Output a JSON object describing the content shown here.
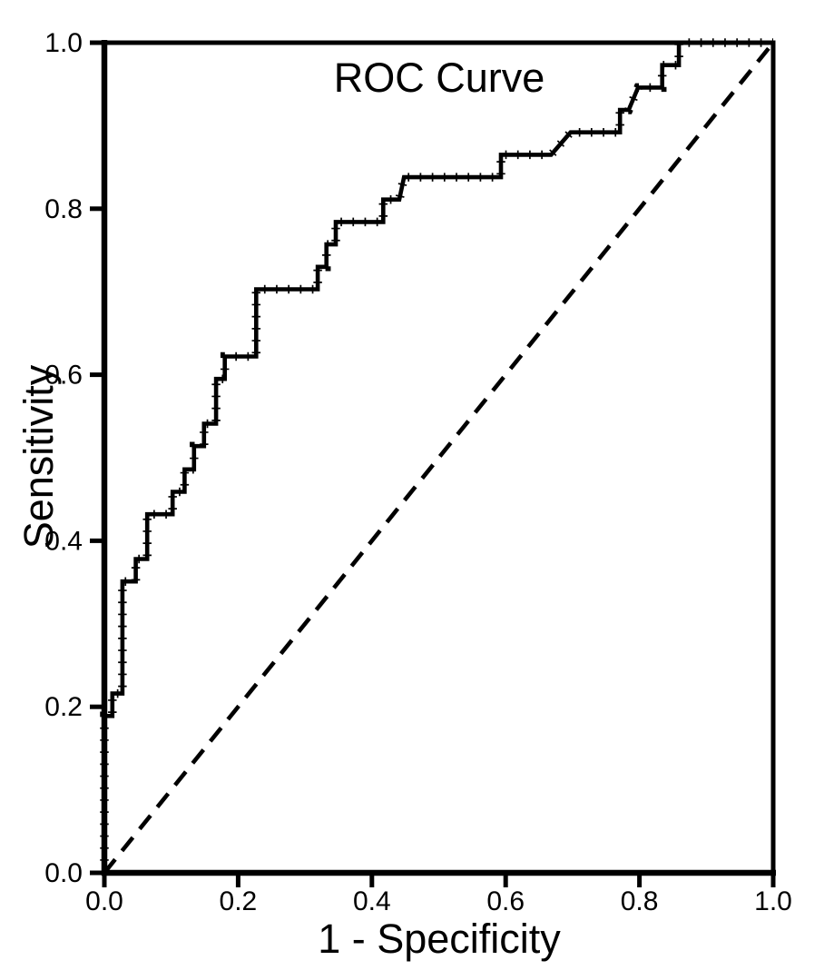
{
  "chart": {
    "title": "ROC Curve",
    "x_axis_label": "1 - Specificity",
    "y_axis_label": "Sensitivity"
  },
  "chart_data": {
    "type": "line",
    "subtype": "roc-step-curve",
    "title": "ROC Curve",
    "xlabel": "1 - Specificity",
    "ylabel": "Sensitivity",
    "xlim": [
      0.0,
      1.0
    ],
    "ylim": [
      0.0,
      1.0
    ],
    "x_ticks": [
      0.0,
      0.2,
      0.4,
      0.6,
      0.8,
      1.0
    ],
    "x_tick_labels": [
      "0.0",
      "0.2",
      "0.4",
      "0.6",
      "0.8",
      "1.0"
    ],
    "y_ticks": [
      0.0,
      0.2,
      0.4,
      0.6,
      0.8,
      1.0
    ],
    "y_tick_labels": [
      "0.0",
      "0.2",
      "0.4",
      "0.6",
      "0.8",
      "1.0"
    ],
    "grid": false,
    "legend_position": "none",
    "line_color": "#000000",
    "background_color": "#ffffff",
    "series": [
      {
        "name": "ROC curve",
        "style": "roc",
        "points": [
          [
            0.0,
            0.0
          ],
          [
            0.0,
            0.189
          ],
          [
            0.012,
            0.189
          ],
          [
            0.012,
            0.216
          ],
          [
            0.027,
            0.216
          ],
          [
            0.027,
            0.351
          ],
          [
            0.047,
            0.351
          ],
          [
            0.047,
            0.378
          ],
          [
            0.064,
            0.378
          ],
          [
            0.064,
            0.432
          ],
          [
            0.102,
            0.432
          ],
          [
            0.102,
            0.459
          ],
          [
            0.12,
            0.459
          ],
          [
            0.12,
            0.486
          ],
          [
            0.134,
            0.486
          ],
          [
            0.134,
            0.514
          ],
          [
            0.149,
            0.514
          ],
          [
            0.149,
            0.541
          ],
          [
            0.167,
            0.541
          ],
          [
            0.167,
            0.595
          ],
          [
            0.18,
            0.595
          ],
          [
            0.18,
            0.622
          ],
          [
            0.227,
            0.622
          ],
          [
            0.227,
            0.703
          ],
          [
            0.319,
            0.703
          ],
          [
            0.319,
            0.73
          ],
          [
            0.332,
            0.73
          ],
          [
            0.332,
            0.757
          ],
          [
            0.346,
            0.757
          ],
          [
            0.346,
            0.784
          ],
          [
            0.417,
            0.784
          ],
          [
            0.417,
            0.811
          ],
          [
            0.441,
            0.811
          ],
          [
            0.448,
            0.838
          ],
          [
            0.593,
            0.838
          ],
          [
            0.593,
            0.865
          ],
          [
            0.668,
            0.865
          ],
          [
            0.697,
            0.892
          ],
          [
            0.771,
            0.892
          ],
          [
            0.771,
            0.919
          ],
          [
            0.784,
            0.919
          ],
          [
            0.798,
            0.946
          ],
          [
            0.834,
            0.946
          ],
          [
            0.834,
            0.973
          ],
          [
            0.859,
            0.973
          ],
          [
            0.859,
            1.0
          ],
          [
            1.0,
            1.0
          ]
        ]
      },
      {
        "name": "Reference diagonal",
        "style": "dashed",
        "points": [
          [
            0.0,
            0.0
          ],
          [
            1.0,
            1.0
          ]
        ]
      }
    ]
  }
}
